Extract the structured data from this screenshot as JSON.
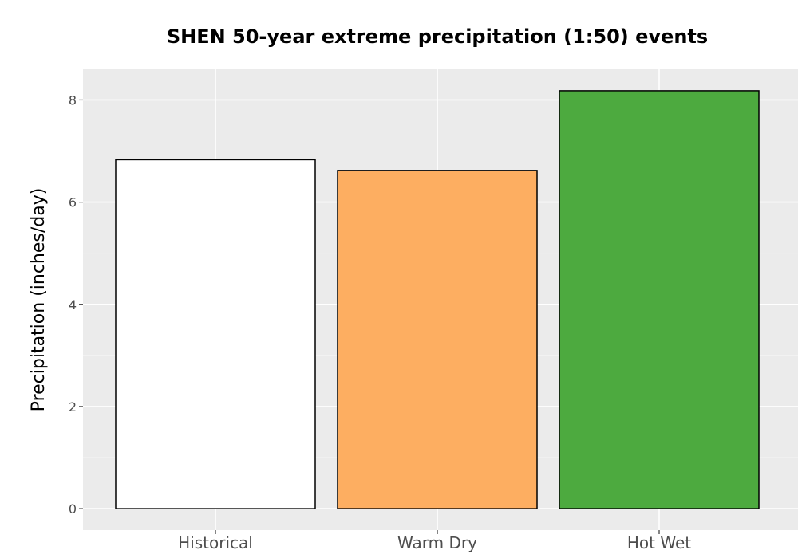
{
  "chart_data": {
    "type": "bar",
    "title": "SHEN 50-year extreme precipitation (1:50) events",
    "xlabel": "",
    "ylabel": "Precipitation (inches/day)",
    "categories": [
      "Historical",
      "Warm Dry",
      "Hot Wet"
    ],
    "values": [
      6.83,
      6.62,
      8.18
    ],
    "bar_colors": [
      "#ffffff",
      "#fdae61",
      "#4daa3f"
    ],
    "bar_outline_color": "#000000",
    "ylim": [
      -0.42,
      8.6
    ],
    "yticks": [
      0,
      2,
      4,
      6,
      8
    ],
    "ytick_labels": [
      "0",
      "2",
      "4",
      "6",
      "8"
    ],
    "grid": true,
    "legend": "none",
    "panel_background": "#ebebeb",
    "gridline_color": "#ffffff"
  }
}
